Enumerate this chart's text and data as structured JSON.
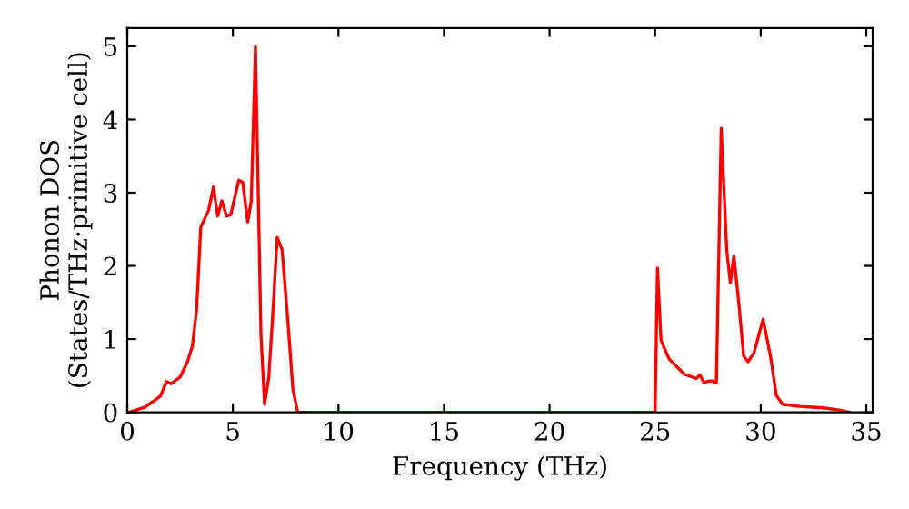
{
  "chart_data": {
    "type": "line",
    "xlabel": "Frequency (THz)",
    "ylabel": "Phonon DOS\n(States/THz·primitive cell)",
    "xlim": [
      0,
      35.3
    ],
    "ylim": [
      0,
      5.25
    ],
    "xticks": [
      0,
      5,
      10,
      15,
      20,
      25,
      30,
      35
    ],
    "yticks": [
      0,
      1,
      2,
      3,
      4,
      5
    ],
    "grid": false,
    "legend": false,
    "marker": "none",
    "line_style": "solid",
    "series": [
      {
        "color": "#ff0000",
        "x": [
          0,
          0.08,
          0.85,
          1.57,
          1.85,
          2.08,
          2.5,
          2.85,
          3.08,
          3.28,
          3.48,
          3.85,
          4.08,
          4.28,
          4.48,
          4.7,
          4.9,
          5.28,
          5.47,
          5.7,
          5.87,
          6.07,
          6.33,
          6.5,
          6.7,
          6.9,
          7.1,
          7.33,
          7.61,
          7.84,
          8.07,
          24.9,
          25.0,
          25.11,
          25.28,
          25.66,
          26.38,
          26.95,
          27.12,
          27.3,
          27.67,
          27.9,
          28.13,
          28.39,
          28.56,
          28.73,
          28.97,
          29.19,
          29.4,
          29.68,
          30.11,
          30.46,
          30.74,
          31.03,
          31.83,
          32.98,
          33.7,
          34.2
        ],
        "values": [
          0,
          0,
          0.07,
          0.22,
          0.42,
          0.39,
          0.48,
          0.69,
          0.9,
          1.39,
          2.53,
          2.76,
          3.08,
          2.68,
          2.89,
          2.68,
          2.7,
          3.17,
          3.14,
          2.6,
          2.89,
          5.0,
          1.06,
          0.11,
          0.48,
          1.39,
          2.39,
          2.22,
          1.23,
          0.32,
          0,
          0,
          0,
          1.97,
          0.98,
          0.73,
          0.52,
          0.46,
          0.51,
          0.41,
          0.43,
          0.4,
          3.88,
          2.22,
          1.77,
          2.14,
          1.47,
          0.77,
          0.69,
          0.81,
          1.27,
          0.77,
          0.23,
          0.11,
          0.08,
          0.06,
          0.03,
          0
        ]
      }
    ]
  }
}
